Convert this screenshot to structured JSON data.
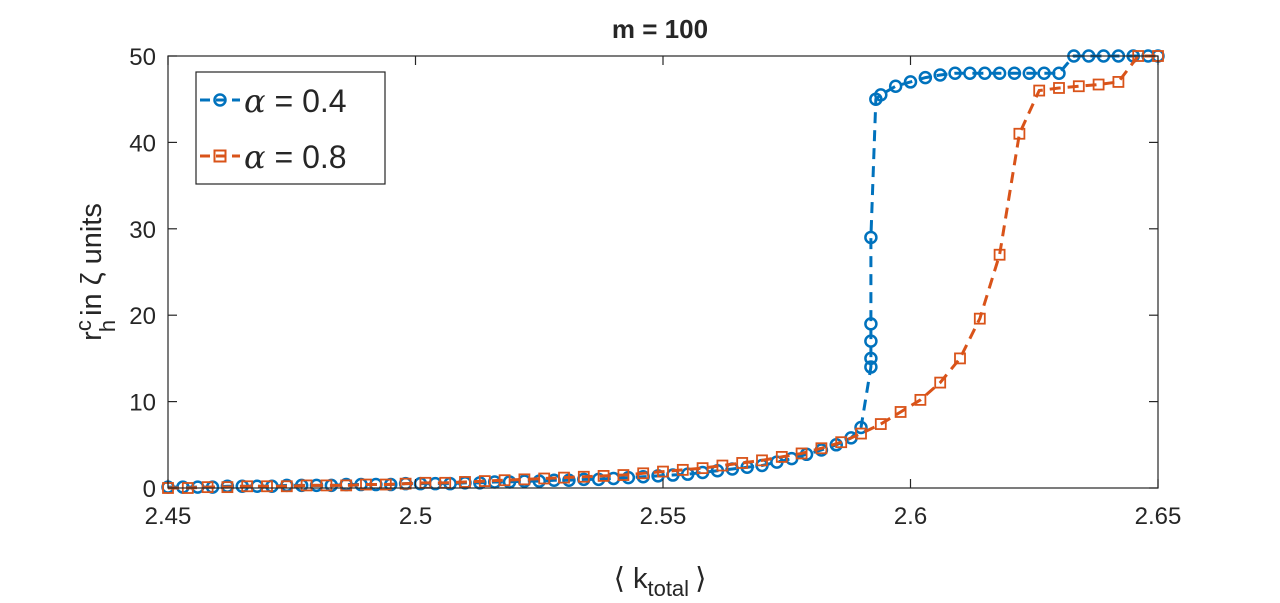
{
  "chart_data": {
    "type": "line",
    "title": "m = 100",
    "xlabel": {
      "left": "⟨ k",
      "sub": "total",
      "right": "⟩"
    },
    "ylabel": {
      "base": "r",
      "sup": "c",
      "sub": "h",
      "rest": "in ζ units"
    },
    "xlim": [
      2.45,
      2.65
    ],
    "ylim": [
      0,
      50
    ],
    "xticks": [
      2.45,
      2.5,
      2.55,
      2.6,
      2.65
    ],
    "xtick_labels": [
      "2.45",
      "2.5",
      "2.55",
      "2.6",
      "2.65"
    ],
    "yticks": [
      0,
      10,
      20,
      30,
      40,
      50
    ],
    "ytick_labels": [
      "0",
      "10",
      "20",
      "30",
      "40",
      "50"
    ],
    "grid": false,
    "legend_location": "top-left",
    "series": [
      {
        "name": "α = 0.4",
        "legend_symbol": "α",
        "legend_value": " = 0.4",
        "color": "#0072BD",
        "marker": "circle",
        "line": "dashed",
        "x": [
          2.45,
          2.453,
          2.456,
          2.459,
          2.462,
          2.465,
          2.468,
          2.471,
          2.474,
          2.477,
          2.48,
          2.483,
          2.486,
          2.489,
          2.492,
          2.495,
          2.498,
          2.501,
          2.504,
          2.507,
          2.51,
          2.513,
          2.516,
          2.519,
          2.522,
          2.525,
          2.528,
          2.531,
          2.534,
          2.537,
          2.54,
          2.543,
          2.546,
          2.549,
          2.552,
          2.555,
          2.558,
          2.561,
          2.564,
          2.567,
          2.57,
          2.573,
          2.576,
          2.579,
          2.582,
          2.585,
          2.588,
          2.59,
          2.592,
          2.592,
          2.592,
          2.592,
          2.592,
          2.593,
          2.594,
          2.597,
          2.6,
          2.603,
          2.606,
          2.609,
          2.612,
          2.615,
          2.618,
          2.621,
          2.624,
          2.627,
          2.63,
          2.633,
          2.636,
          2.639,
          2.642,
          2.645,
          2.648,
          2.65
        ],
        "y": [
          0.1,
          0.1,
          0.1,
          0.1,
          0.2,
          0.2,
          0.2,
          0.2,
          0.3,
          0.3,
          0.3,
          0.3,
          0.4,
          0.4,
          0.4,
          0.4,
          0.5,
          0.5,
          0.5,
          0.5,
          0.6,
          0.6,
          0.7,
          0.7,
          0.8,
          0.8,
          0.9,
          0.9,
          1.0,
          1.0,
          1.1,
          1.2,
          1.3,
          1.4,
          1.5,
          1.6,
          1.8,
          2.0,
          2.2,
          2.4,
          2.6,
          3.0,
          3.4,
          3.9,
          4.4,
          5.0,
          5.8,
          7.0,
          14,
          15,
          17,
          19,
          29,
          45,
          45.5,
          46.5,
          47,
          47.5,
          47.8,
          48,
          48,
          48,
          48,
          48,
          48,
          48,
          48,
          50,
          50,
          50,
          50,
          50,
          50,
          50
        ]
      },
      {
        "name": "α = 0.8",
        "legend_symbol": "α",
        "legend_value": " = 0.8",
        "color": "#D95319",
        "marker": "square",
        "line": "dashed",
        "x": [
          2.45,
          2.454,
          2.458,
          2.462,
          2.466,
          2.47,
          2.474,
          2.478,
          2.482,
          2.486,
          2.49,
          2.494,
          2.498,
          2.502,
          2.506,
          2.51,
          2.514,
          2.518,
          2.522,
          2.526,
          2.53,
          2.534,
          2.538,
          2.542,
          2.546,
          2.55,
          2.554,
          2.558,
          2.562,
          2.566,
          2.57,
          2.574,
          2.578,
          2.582,
          2.586,
          2.59,
          2.594,
          2.598,
          2.602,
          2.606,
          2.61,
          2.614,
          2.618,
          2.622,
          2.626,
          2.63,
          2.634,
          2.638,
          2.642,
          2.646,
          2.65
        ],
        "y": [
          0.0,
          0.0,
          0.1,
          0.1,
          0.2,
          0.2,
          0.2,
          0.3,
          0.3,
          0.3,
          0.4,
          0.4,
          0.5,
          0.6,
          0.6,
          0.7,
          0.8,
          0.9,
          1.0,
          1.1,
          1.2,
          1.3,
          1.4,
          1.5,
          1.7,
          1.9,
          2.1,
          2.3,
          2.6,
          2.9,
          3.2,
          3.6,
          4.0,
          4.6,
          5.3,
          6.3,
          7.4,
          8.8,
          10.2,
          12.2,
          15.0,
          19.6,
          27.0,
          41.0,
          46.0,
          46.3,
          46.5,
          46.7,
          47.0,
          50,
          50
        ]
      }
    ]
  }
}
